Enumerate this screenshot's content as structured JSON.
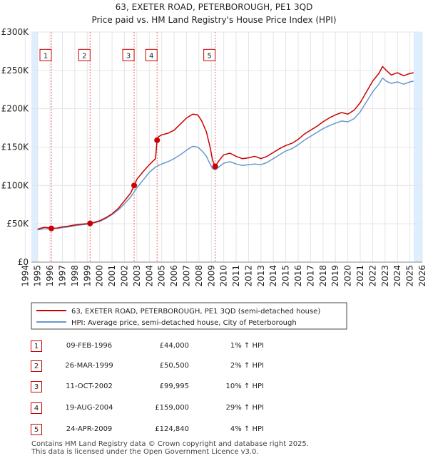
{
  "colors": {
    "red_line": "#cc0000",
    "blue_line": "#6699cc",
    "highlight_band": "#ddeeff",
    "grid": "#e5e5e5",
    "dashed": "#ee6666"
  },
  "chart_data": {
    "type": "line",
    "title": "63, EXETER ROAD, PETERBOROUGH, PE1 3QD",
    "subtitle": "Price paid vs. HM Land Registry's House Price Index (HPI)",
    "xlim": [
      1994.5,
      2026
    ],
    "ylim": [
      0,
      300000
    ],
    "x_ticks": [
      "1994",
      "1995",
      "1996",
      "1997",
      "1998",
      "1999",
      "2000",
      "2001",
      "2002",
      "2003",
      "2004",
      "2005",
      "2006",
      "2007",
      "2008",
      "2009",
      "2010",
      "2011",
      "2012",
      "2013",
      "2014",
      "2015",
      "2016",
      "2017",
      "2018",
      "2019",
      "2020",
      "2021",
      "2022",
      "2023",
      "2024",
      "2025",
      "2026"
    ],
    "y_ticks": [
      {
        "value": 0,
        "label": "£0"
      },
      {
        "value": 50000,
        "label": "£50K"
      },
      {
        "value": 100000,
        "label": "£100K"
      },
      {
        "value": 150000,
        "label": "£150K"
      },
      {
        "value": 200000,
        "label": "£200K"
      },
      {
        "value": 250000,
        "label": "£250K"
      },
      {
        "value": 300000,
        "label": "£300K"
      }
    ],
    "data_range": [
      1995.0,
      2025.3
    ],
    "series": [
      {
        "name": "63, EXETER ROAD, PETERBOROUGH, PE1 3QD (semi-detached house)",
        "color": "#cc0000",
        "points": [
          [
            1995.0,
            43000
          ],
          [
            1995.3,
            44500
          ],
          [
            1995.6,
            45500
          ],
          [
            1996.1,
            44000
          ],
          [
            1996.6,
            44500
          ],
          [
            1997.0,
            46000
          ],
          [
            1997.5,
            47000
          ],
          [
            1998.0,
            48500
          ],
          [
            1998.5,
            49500
          ],
          [
            1999.23,
            50500
          ],
          [
            1999.6,
            52000
          ],
          [
            2000.0,
            54000
          ],
          [
            2000.5,
            58000
          ],
          [
            2001.0,
            63000
          ],
          [
            2001.5,
            70000
          ],
          [
            2002.0,
            80000
          ],
          [
            2002.5,
            90000
          ],
          [
            2002.78,
            99995
          ],
          [
            2003.0,
            108000
          ],
          [
            2003.5,
            118000
          ],
          [
            2004.0,
            127000
          ],
          [
            2004.5,
            135000
          ],
          [
            2004.63,
            159000
          ],
          [
            2004.7,
            163000
          ],
          [
            2005.0,
            166000
          ],
          [
            2005.5,
            168000
          ],
          [
            2006.0,
            172000
          ],
          [
            2006.5,
            180000
          ],
          [
            2007.0,
            188000
          ],
          [
            2007.5,
            193000
          ],
          [
            2007.9,
            192000
          ],
          [
            2008.2,
            185000
          ],
          [
            2008.6,
            170000
          ],
          [
            2008.9,
            150000
          ],
          [
            2009.1,
            133000
          ],
          [
            2009.31,
            124840
          ],
          [
            2009.6,
            132000
          ],
          [
            2010.0,
            140000
          ],
          [
            2010.5,
            142000
          ],
          [
            2011.0,
            138000
          ],
          [
            2011.5,
            135000
          ],
          [
            2012.0,
            136000
          ],
          [
            2012.5,
            138000
          ],
          [
            2013.0,
            135000
          ],
          [
            2013.5,
            138000
          ],
          [
            2014.0,
            143000
          ],
          [
            2014.5,
            148000
          ],
          [
            2015.0,
            152000
          ],
          [
            2015.5,
            155000
          ],
          [
            2016.0,
            160000
          ],
          [
            2016.5,
            167000
          ],
          [
            2017.0,
            172000
          ],
          [
            2017.5,
            177000
          ],
          [
            2018.0,
            183000
          ],
          [
            2018.5,
            188000
          ],
          [
            2019.0,
            192000
          ],
          [
            2019.5,
            195000
          ],
          [
            2020.0,
            193000
          ],
          [
            2020.5,
            198000
          ],
          [
            2021.0,
            208000
          ],
          [
            2021.5,
            222000
          ],
          [
            2022.0,
            236000
          ],
          [
            2022.5,
            246000
          ],
          [
            2022.8,
            255000
          ],
          [
            2023.1,
            250000
          ],
          [
            2023.5,
            244000
          ],
          [
            2024.0,
            247000
          ],
          [
            2024.5,
            243000
          ],
          [
            2025.0,
            246000
          ],
          [
            2025.3,
            247000
          ]
        ]
      },
      {
        "name": "HPI: Average price, semi-detached house, City of Peterborough",
        "color": "#6699cc",
        "points": [
          [
            1995.0,
            42000
          ],
          [
            1995.5,
            43500
          ],
          [
            1996.0,
            43500
          ],
          [
            1996.6,
            44000
          ],
          [
            1997.0,
            45000
          ],
          [
            1997.5,
            46000
          ],
          [
            1998.0,
            47500
          ],
          [
            1998.5,
            48500
          ],
          [
            1999.0,
            49500
          ],
          [
            1999.5,
            51000
          ],
          [
            2000.0,
            53000
          ],
          [
            2000.5,
            57000
          ],
          [
            2001.0,
            62000
          ],
          [
            2001.5,
            68000
          ],
          [
            2002.0,
            76000
          ],
          [
            2002.5,
            85000
          ],
          [
            2003.0,
            97000
          ],
          [
            2003.5,
            107000
          ],
          [
            2004.0,
            117000
          ],
          [
            2004.5,
            124000
          ],
          [
            2005.0,
            128000
          ],
          [
            2005.5,
            131000
          ],
          [
            2006.0,
            135000
          ],
          [
            2006.5,
            140000
          ],
          [
            2007.0,
            146000
          ],
          [
            2007.5,
            151000
          ],
          [
            2007.9,
            150000
          ],
          [
            2008.2,
            146000
          ],
          [
            2008.6,
            138000
          ],
          [
            2008.9,
            128000
          ],
          [
            2009.1,
            122000
          ],
          [
            2009.3,
            120000
          ],
          [
            2009.6,
            124000
          ],
          [
            2010.0,
            129000
          ],
          [
            2010.5,
            131000
          ],
          [
            2011.0,
            128000
          ],
          [
            2011.5,
            126000
          ],
          [
            2012.0,
            127000
          ],
          [
            2012.5,
            128000
          ],
          [
            2013.0,
            127000
          ],
          [
            2013.5,
            130000
          ],
          [
            2014.0,
            135000
          ],
          [
            2014.5,
            140000
          ],
          [
            2015.0,
            145000
          ],
          [
            2015.5,
            148000
          ],
          [
            2016.0,
            153000
          ],
          [
            2016.5,
            159000
          ],
          [
            2017.0,
            164000
          ],
          [
            2017.5,
            169000
          ],
          [
            2018.0,
            174000
          ],
          [
            2018.5,
            178000
          ],
          [
            2019.0,
            181000
          ],
          [
            2019.5,
            184000
          ],
          [
            2020.0,
            183000
          ],
          [
            2020.5,
            187000
          ],
          [
            2021.0,
            196000
          ],
          [
            2021.5,
            209000
          ],
          [
            2022.0,
            222000
          ],
          [
            2022.5,
            232000
          ],
          [
            2022.8,
            240000
          ],
          [
            2023.1,
            236000
          ],
          [
            2023.5,
            233000
          ],
          [
            2024.0,
            235000
          ],
          [
            2024.5,
            232000
          ],
          [
            2025.0,
            235000
          ],
          [
            2025.3,
            236000
          ]
        ]
      }
    ],
    "sale_markers": [
      {
        "label": "1",
        "x": 1996.11,
        "y": 44000
      },
      {
        "label": "2",
        "x": 1999.23,
        "y": 50500
      },
      {
        "label": "3",
        "x": 2002.78,
        "y": 99995
      },
      {
        "label": "4",
        "x": 2004.63,
        "y": 159000
      },
      {
        "label": "5",
        "x": 2009.31,
        "y": 124840
      }
    ],
    "marker_label_value": 270000,
    "shaded_ranges": [
      [
        1994.5,
        1995.0
      ],
      [
        2025.3,
        2026.0
      ]
    ],
    "legend": [
      {
        "label": "63, EXETER ROAD, PETERBOROUGH, PE1 3QD (semi-detached house)",
        "color": "#cc0000"
      },
      {
        "label": "HPI: Average price, semi-detached house, City of Peterborough",
        "color": "#6699cc"
      }
    ]
  },
  "sales": [
    {
      "num": "1",
      "date": "09-FEB-1996",
      "price": "£44,000",
      "hpi": "1% ↑ HPI"
    },
    {
      "num": "2",
      "date": "26-MAR-1999",
      "price": "£50,500",
      "hpi": "2% ↑ HPI"
    },
    {
      "num": "3",
      "date": "11-OCT-2002",
      "price": "£99,995",
      "hpi": "10% ↑ HPI"
    },
    {
      "num": "4",
      "date": "19-AUG-2004",
      "price": "£159,000",
      "hpi": "29% ↑ HPI"
    },
    {
      "num": "5",
      "date": "24-APR-2009",
      "price": "£124,840",
      "hpi": "4% ↑ HPI"
    }
  ],
  "footer": {
    "line1": "Contains HM Land Registry data © Crown copyright and database right 2025.",
    "line2": "This data is licensed under the Open Government Licence v3.0."
  }
}
